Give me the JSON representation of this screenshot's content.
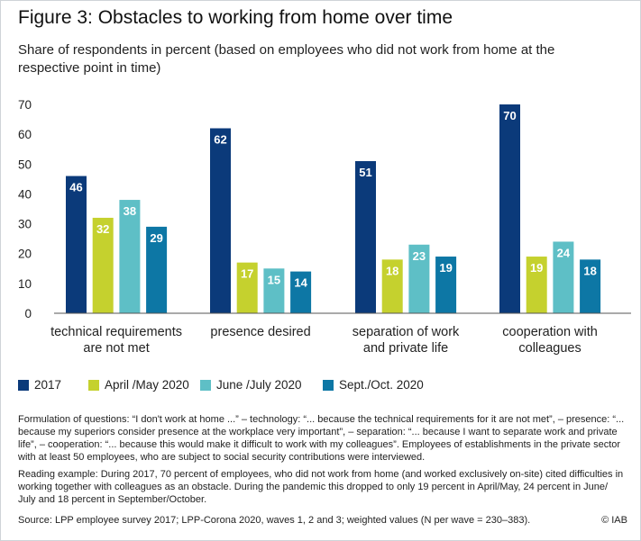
{
  "figure": {
    "title": "Figure 3: Obstacles to working from home over time",
    "subtitle": "Share of respondents in percent (based on employees who did not work from home at the respective point in time)"
  },
  "chart_data": {
    "type": "bar",
    "categories": [
      [
        "technical requirements",
        "are not met"
      ],
      [
        "presence desired"
      ],
      [
        "separation of work",
        "and private life"
      ],
      [
        "cooperation with",
        "colleagues"
      ]
    ],
    "series": [
      {
        "name": "2017",
        "color": "#0b3a7a",
        "values": [
          46,
          62,
          51,
          70
        ]
      },
      {
        "name": "April /May 2020",
        "color": "#c5d12e",
        "values": [
          32,
          17,
          18,
          19
        ]
      },
      {
        "name": "June /July 2020",
        "color": "#5ebfc6",
        "values": [
          38,
          15,
          23,
          24
        ]
      },
      {
        "name": "Sept./Oct. 2020",
        "color": "#0d77a5",
        "values": [
          29,
          14,
          19,
          18
        ]
      }
    ],
    "yticks": [
      0,
      10,
      20,
      30,
      40,
      50,
      60,
      70
    ],
    "ylim": [
      0,
      70
    ],
    "grid": false,
    "legend_position": "bottom-left",
    "xlabel": "",
    "ylabel": ""
  },
  "notes": {
    "formulation": "Formulation of questions: “I don't work at home ...” – technology: “... because the technical requirements for it are not met”, – presence: “... because my superiors consider presence at the workplace very important”, – separation: “... because I want to separate work and private life”, – cooperation: “... because this would make it difficult to work with my colleagues”. Employees of establishments in the private sector with at least 50 employees, who are subject to social security contributions were interviewed.",
    "reading_example": "Reading example: During 2017, 70 percent of employees, who did not work from home (and worked exclusively on-site) cited difficulties in working together with colleagues as an obstacle. During the pandemic this dropped to only 19 percent in April/May, 24 percent in June/ July and 18 percent in September/October.",
    "source": "Source: LPP employee survey 2017; LPP-Corona 2020, waves 1, 2 and 3; weighted values (N per wave = 230–383).",
    "copyright": "© IAB"
  }
}
